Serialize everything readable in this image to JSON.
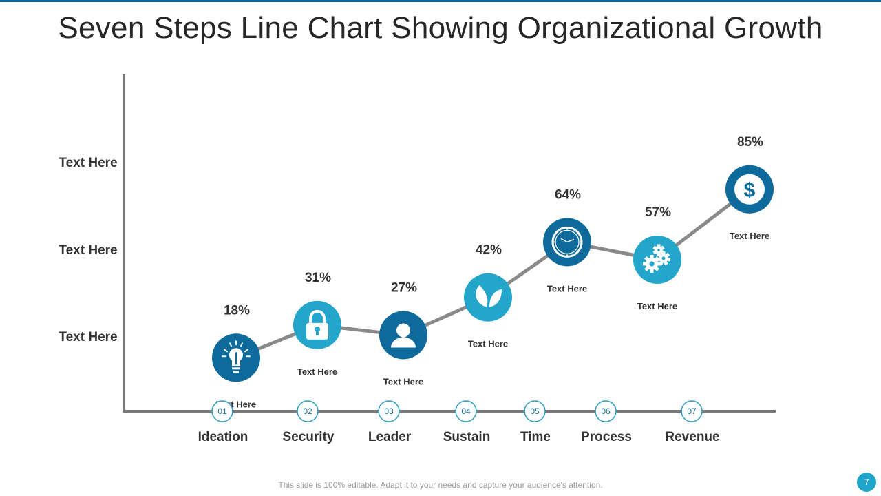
{
  "slide": {
    "title": "Seven Steps Line Chart Showing Organizational Growth",
    "footer": "This slide is 100% editable. Adapt it to your needs and capture your audience's attention.",
    "page_number": "7"
  },
  "colors": {
    "dark_blue": "#0f6a9c",
    "light_blue": "#23a6c9",
    "line": "#8a8a8a",
    "axis": "#7a7a7a",
    "text": "#333333"
  },
  "chart_data": {
    "type": "line",
    "title": "Seven Steps Line Chart Showing Organizational Growth",
    "y_tick_labels": [
      "Text Here",
      "Text Here",
      "Text Here"
    ],
    "ylim": [
      0,
      100
    ],
    "grid": false,
    "categories": [
      "Ideation",
      "Security",
      "Leader",
      "Sustain",
      "Time",
      "Process",
      "Revenue"
    ],
    "step_numbers": [
      "01",
      "02",
      "03",
      "04",
      "05",
      "06",
      "07"
    ],
    "values": [
      18,
      31,
      27,
      42,
      64,
      57,
      85
    ],
    "value_labels": [
      "18%",
      "31%",
      "27%",
      "42%",
      "64%",
      "57%",
      "85%"
    ],
    "point_captions": [
      "Text Here",
      "Text Here",
      "Text Here",
      "Text Here",
      "Text Here",
      "Text Here",
      "Text Here"
    ],
    "icons": [
      "lightbulb-icon",
      "lock-icon",
      "user-icon",
      "leaf-icon",
      "clock-icon",
      "gears-icon",
      "dollar-icon"
    ],
    "marker_colors": [
      "dark_blue",
      "light_blue",
      "dark_blue",
      "light_blue",
      "dark_blue",
      "light_blue",
      "dark_blue"
    ]
  }
}
